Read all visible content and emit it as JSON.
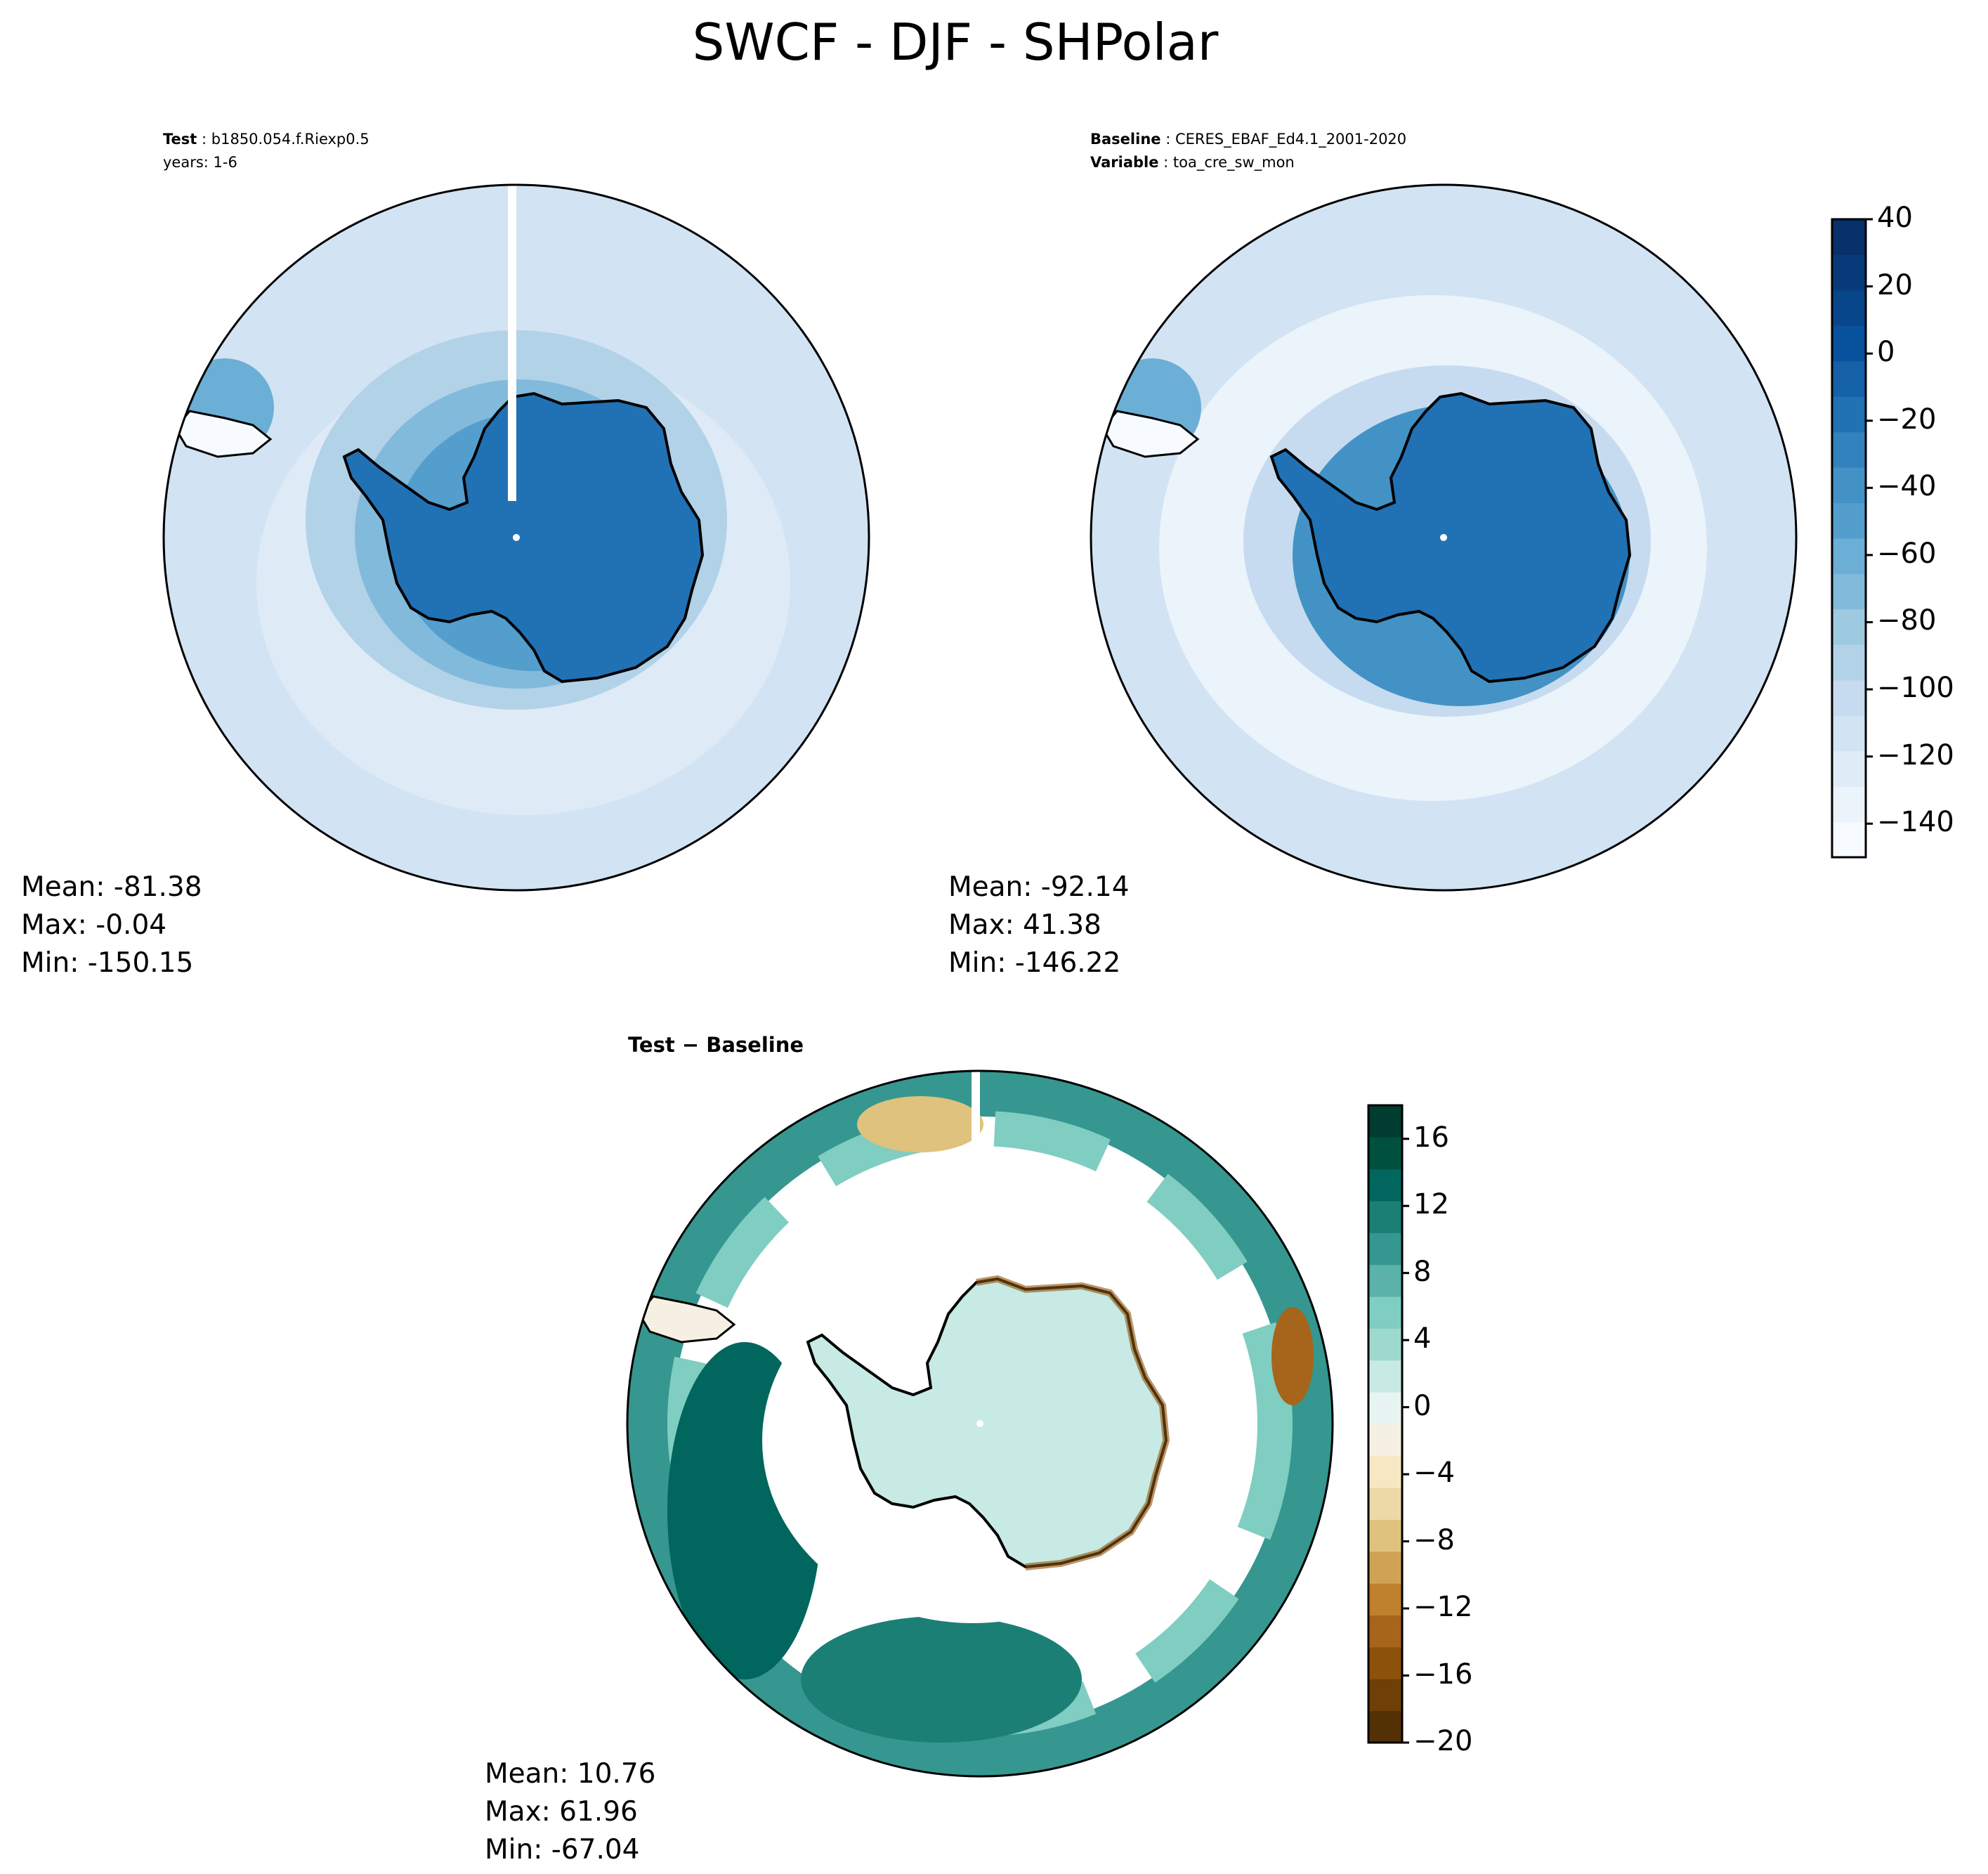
{
  "figure": {
    "title": "SWCF - DJF - SHPolar"
  },
  "colors": {
    "blues": [
      "#f7fbff",
      "#ebf3fb",
      "#dfebf7",
      "#d2e3f3",
      "#c6dbef",
      "#b2d2e8",
      "#9ecae1",
      "#82badb",
      "#6baed6",
      "#539ecd",
      "#4292c6",
      "#3282be",
      "#2171b5",
      "#1461a8",
      "#08519c",
      "#08468b",
      "#083a7a",
      "#08306b"
    ],
    "diverging": [
      "#543005",
      "#6f3f08",
      "#8c510a",
      "#a6651a",
      "#bf812d",
      "#d0a254",
      "#dfc27d",
      "#ecd9a7",
      "#f6e8c3",
      "#f5f0e3",
      "#e8f4f2",
      "#c7eae5",
      "#9ed9cf",
      "#80cdc1",
      "#5ab2a8",
      "#35978f",
      "#1b7f76",
      "#01665e",
      "#00503f",
      "#003c30"
    ]
  },
  "chart_data": [
    {
      "type": "heatmap",
      "panel": "test",
      "projection": "south-polar-stereographic",
      "header": [
        {
          "key": "Test",
          "value": "b1850.054.f.Riexp0.5"
        },
        {
          "key": "",
          "value": "years: 1-6"
        }
      ],
      "stats": {
        "mean": "Mean: -81.38",
        "max": "Max: -0.04",
        "min": "Min: -150.15"
      },
      "shared_colorbar": {
        "ticks": [
          "40",
          "20",
          "0",
          "−20",
          "−40",
          "−60",
          "−80",
          "−100",
          "−120",
          "−140"
        ],
        "tick_values": [
          40,
          20,
          0,
          -20,
          -40,
          -60,
          -80,
          -100,
          -120,
          -140
        ],
        "range": [
          -150,
          40
        ],
        "colormap": "Blues"
      }
    },
    {
      "type": "heatmap",
      "panel": "baseline",
      "projection": "south-polar-stereographic",
      "header": [
        {
          "key": "Baseline",
          "value": "CERES_EBAF_Ed4.1_2001-2020"
        },
        {
          "key": "Variable",
          "value": "toa_cre_sw_mon"
        }
      ],
      "stats": {
        "mean": "Mean: -92.14",
        "max": "Max: 41.38",
        "min": "Min: -146.22"
      }
    },
    {
      "type": "heatmap",
      "panel": "difference",
      "projection": "south-polar-stereographic",
      "title": "Test − Baseline",
      "stats": {
        "mean": "Mean: 10.76",
        "max": "Max: 61.96",
        "min": "Min: -67.04"
      },
      "colorbar": {
        "ticks": [
          "16",
          "12",
          "8",
          "4",
          "0",
          "−4",
          "−8",
          "−12",
          "−16",
          "−20"
        ],
        "tick_values": [
          16,
          12,
          8,
          4,
          0,
          -4,
          -8,
          -12,
          -16,
          -20
        ],
        "range": [
          -20,
          18
        ],
        "colormap": "BrBG"
      }
    }
  ]
}
